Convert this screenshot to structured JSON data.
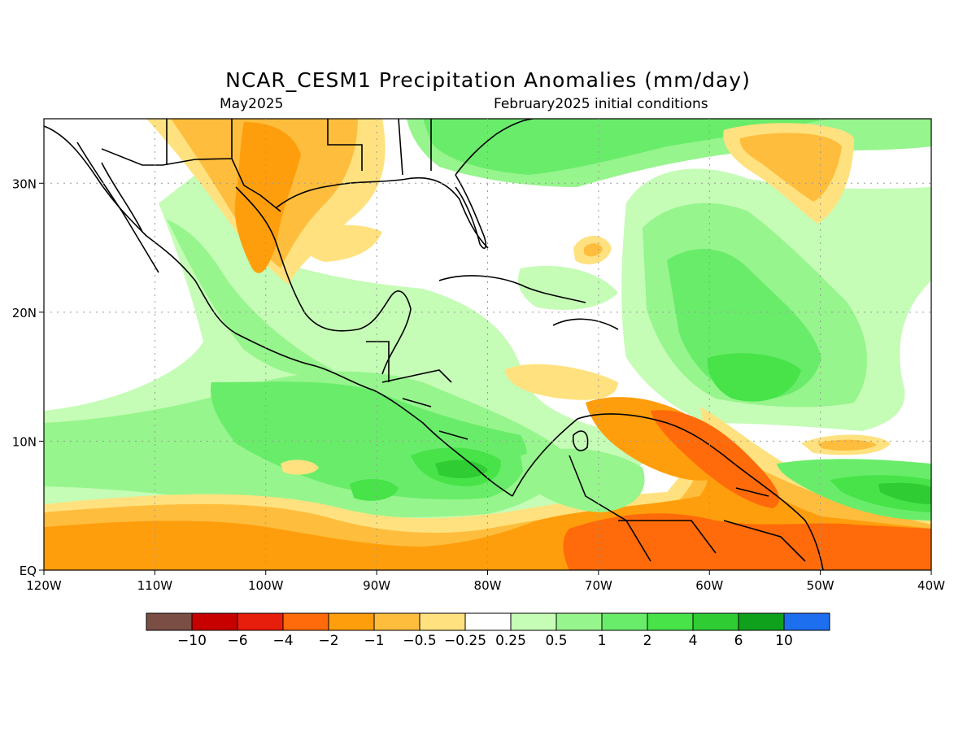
{
  "title": "NCAR_CESM1 Precipitation Anomalies (mm/day)",
  "subtitle_left": "May2025",
  "subtitle_right": "February2025 initial conditions",
  "map": {
    "lon_range": [
      -120,
      -40
    ],
    "lat_range": [
      0,
      35
    ],
    "lon_ticks": [
      {
        "value": -120,
        "label": "120W"
      },
      {
        "value": -110,
        "label": "110W"
      },
      {
        "value": -100,
        "label": "100W"
      },
      {
        "value": -90,
        "label": "90W"
      },
      {
        "value": -80,
        "label": "80W"
      },
      {
        "value": -70,
        "label": "70W"
      },
      {
        "value": -60,
        "label": "60W"
      },
      {
        "value": -50,
        "label": "50W"
      },
      {
        "value": -40,
        "label": "40W"
      }
    ],
    "lat_ticks": [
      {
        "value": 0,
        "label": "EQ"
      },
      {
        "value": 10,
        "label": "10N"
      },
      {
        "value": 20,
        "label": "20N"
      },
      {
        "value": 30,
        "label": "30N"
      }
    ],
    "gridlines": true
  },
  "colorbar": {
    "colors": [
      "#7a4e45",
      "#c70000",
      "#e81e0d",
      "#ff6a0a",
      "#ff9e0c",
      "#ffbd3d",
      "#ffe27f",
      "#ffffff",
      "#c5fcb6",
      "#96f58c",
      "#6aec6b",
      "#47e349",
      "#2fcc33",
      "#10a11c",
      "#1e6ff0"
    ],
    "labels": [
      "−10",
      "−6",
      "−4",
      "−2",
      "−1",
      "−0.5",
      "−0.25",
      "0.25",
      "0.5",
      "1",
      "2",
      "4",
      "6",
      "10"
    ]
  },
  "colors": {
    "dry_light": "#ffe27f",
    "dry_mid": "#ffbd3d",
    "dry_strong": "#ff9e0c",
    "dry_heavy": "#ff6a0a",
    "wet_light": "#c5fcb6",
    "wet_mid": "#96f58c",
    "wet_strong": "#6aec6b",
    "wet_heavy": "#47e349",
    "wet_max": "#2fcc33",
    "wet_extreme": "#10a11c"
  }
}
